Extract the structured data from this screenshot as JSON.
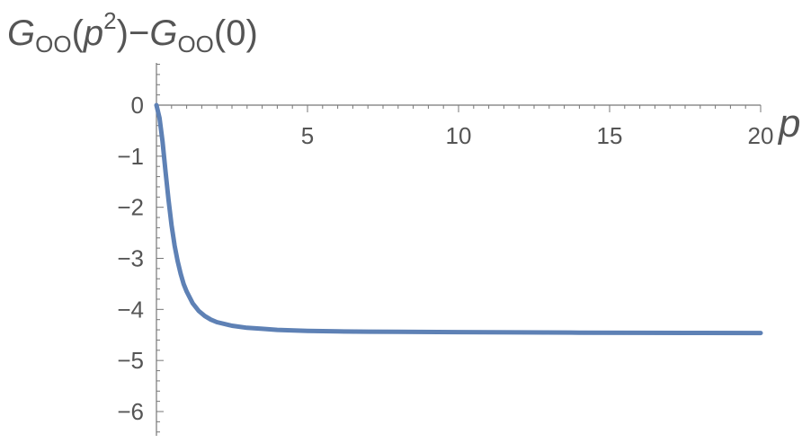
{
  "chart_data": {
    "type": "line",
    "title": "",
    "ylabel": {
      "main": "G",
      "sub1": "OO",
      "open1": "(",
      "p": "p",
      "sup": "2",
      "mid": ")−",
      "main2": "G",
      "sub2": "OO",
      "tail": "(0)"
    },
    "xlabel": "p",
    "xlim": [
      0,
      20
    ],
    "ylim": [
      -6.5,
      0.8
    ],
    "x_ticks": [
      5,
      10,
      15,
      20
    ],
    "x_tick_labels": [
      "5",
      "10",
      "15",
      "20"
    ],
    "y_ticks": [
      0,
      -1,
      -2,
      -3,
      -4,
      -5,
      -6
    ],
    "y_tick_labels": [
      "0",
      "−1",
      "−2",
      "−3",
      "−4",
      "−5",
      "−6"
    ],
    "grid": false,
    "series": [
      {
        "color": "#5e81b5",
        "x": [
          0,
          0.1,
          0.2,
          0.3,
          0.4,
          0.5,
          0.6,
          0.7,
          0.8,
          0.9,
          1.0,
          1.2,
          1.4,
          1.6,
          1.8,
          2.0,
          2.5,
          3.0,
          3.5,
          4.0,
          5.0,
          6.0,
          7.0,
          8.0,
          10.0,
          12.0,
          14.0,
          16.0,
          18.0,
          20.0
        ],
        "y": [
          0,
          -0.25,
          -0.7,
          -1.3,
          -1.85,
          -2.35,
          -2.75,
          -3.05,
          -3.3,
          -3.5,
          -3.65,
          -3.88,
          -4.03,
          -4.13,
          -4.2,
          -4.25,
          -4.32,
          -4.36,
          -4.38,
          -4.4,
          -4.42,
          -4.43,
          -4.435,
          -4.44,
          -4.445,
          -4.45,
          -4.455,
          -4.458,
          -4.46,
          -4.462
        ]
      }
    ]
  }
}
